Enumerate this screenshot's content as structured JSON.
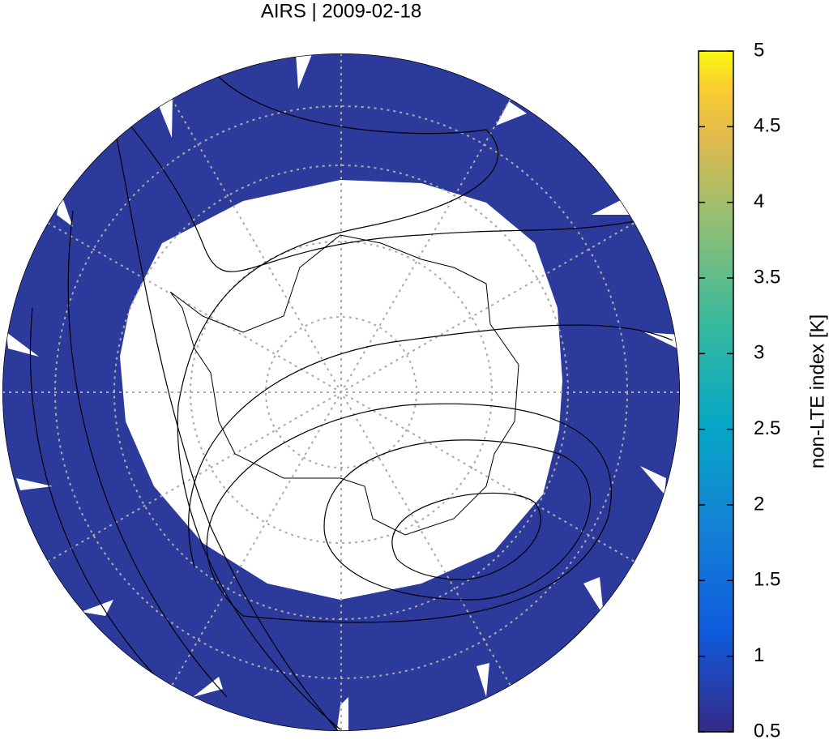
{
  "chart_data": {
    "type": "map",
    "title": "AIRS | 2009-02-18",
    "colorbar_label": "non-LTE index [K]",
    "clim": [
      0.5,
      5
    ],
    "cticks": [
      0.5,
      1,
      1.5,
      2,
      2.5,
      3,
      3.5,
      4,
      4.5,
      5
    ]
  }
}
